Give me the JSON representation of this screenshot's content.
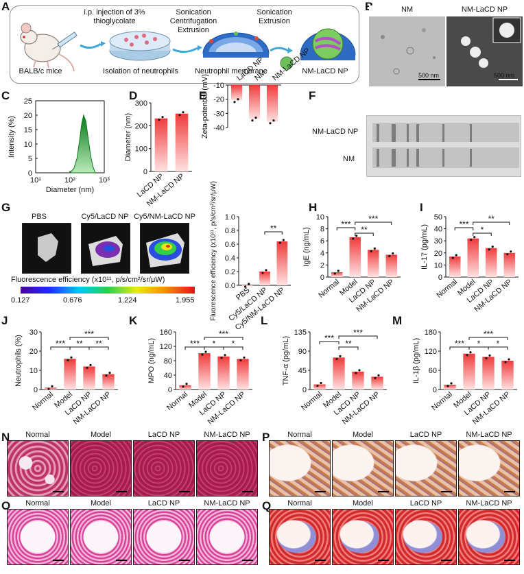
{
  "panels": {
    "A": "A",
    "B": "B",
    "C": "C",
    "D": "D",
    "E": "E",
    "F": "F",
    "G": "G",
    "H": "H",
    "I": "I",
    "J": "J",
    "K": "K",
    "L": "L",
    "M": "M",
    "N": "N",
    "O": "O",
    "P": "P",
    "Q": "Q"
  },
  "schematic": {
    "mice_label": "BALB/c mice",
    "injection_label_1": "i.p. injection of 3%",
    "injection_label_2": "thioglycolate",
    "isolation_label": "Isolation of neutrophils",
    "step2_1": "Sonication",
    "step2_2": "Centrifugation",
    "step2_3": "Extrusion",
    "membrane_label": "Neutrophil membrane",
    "step3_1": "Sonication",
    "step3_2": "Extrusion",
    "np_label": "NM-LaCD NP"
  },
  "tem": {
    "left_title": "NM",
    "right_title": "NM-LaCD NP",
    "left_scale": "500 nm",
    "right_scale": "500 nm"
  },
  "gel": {
    "row1": "NM-LaCD NP",
    "row2": "NM"
  },
  "ivis": {
    "labels": [
      "PBS",
      "Cy5/LaCD NP",
      "Cy5/NM-LaCD NP"
    ],
    "colorbar_title": "Fluorescence efficiency (x10¹¹, p/s/cm²/sr/μW)",
    "ticks": [
      "0.127",
      "0.676",
      "1.224",
      "1.955"
    ]
  },
  "chart_data": [
    {
      "id": "C",
      "type": "area",
      "xlabel": "Diameter (nm)",
      "ylabel": "Intensity (%)",
      "xscale": "log",
      "xlim": [
        10,
        1000
      ],
      "ylim": [
        0,
        25
      ],
      "xticks": [
        "10¹",
        "10²",
        "10³"
      ],
      "yticks": [
        "0",
        "5",
        "10",
        "15",
        "20",
        "25"
      ],
      "x": [
        100,
        130,
        160,
        190,
        220,
        250,
        290,
        340,
        400,
        470,
        550
      ],
      "y": [
        0,
        1.5,
        5,
        11,
        17,
        20,
        18,
        12,
        6,
        2,
        0
      ]
    },
    {
      "id": "D",
      "type": "bar",
      "ylabel": "Diameter (nm)",
      "ylim": [
        0,
        300
      ],
      "yticks": [
        "0",
        "100",
        "200",
        "300"
      ],
      "categories": [
        "LaCD NP",
        "NM-LaCD NP"
      ],
      "values": [
        232,
        253
      ]
    },
    {
      "id": "E",
      "type": "bar",
      "ylabel": "Zeta-potential (mV)",
      "ylim": [
        -40,
        -10
      ],
      "yticks": [
        "-10",
        "-20",
        "-30",
        "-40"
      ],
      "categories": [
        "LaCD NP",
        "NM",
        "NM-LaCD NP"
      ],
      "values": [
        -21,
        -34,
        -36
      ]
    },
    {
      "id": "G",
      "type": "bar",
      "ylabel": "Fluorescence efficiency (x10¹¹, p/s/cm²/sr/μW)",
      "ylim": [
        0,
        1.0
      ],
      "yticks": [
        "0.0",
        "0.2",
        "0.4",
        "0.6",
        "0.8",
        "1.0"
      ],
      "categories": [
        "PBS",
        "Cy5/LaCD NP",
        "Cy5/NM-LaCD NP"
      ],
      "values": [
        0.0,
        0.2,
        0.64
      ],
      "annotations": [
        "**"
      ]
    },
    {
      "id": "H",
      "type": "bar",
      "ylabel": "IgE (ng/mL)",
      "ylim": [
        0,
        10
      ],
      "yticks": [
        "0",
        "2",
        "4",
        "6",
        "8",
        "10"
      ],
      "categories": [
        "Normal",
        "Model",
        "LaCD NP",
        "NM-LaCD NP"
      ],
      "values": [
        0.8,
        6.6,
        4.5,
        3.7
      ],
      "annotations": [
        "***",
        "**",
        "***"
      ]
    },
    {
      "id": "I",
      "type": "bar",
      "ylabel": "IL-17 (pg/mL)",
      "ylim": [
        0,
        50
      ],
      "yticks": [
        "0",
        "10",
        "20",
        "30",
        "40",
        "50"
      ],
      "categories": [
        "Normal",
        "Model",
        "LaCD NP",
        "NM-LaCD NP"
      ],
      "values": [
        17,
        32,
        24,
        20
      ],
      "annotations": [
        "***",
        "*",
        "**"
      ]
    },
    {
      "id": "J",
      "type": "bar",
      "ylabel": "Neutrophils (%)",
      "ylim": [
        0,
        30
      ],
      "yticks": [
        "0",
        "10",
        "20",
        "30"
      ],
      "categories": [
        "Normal",
        "Model",
        "LaCD NP",
        "NM-LaCD NP"
      ],
      "values": [
        1,
        16,
        12,
        8
      ],
      "annotations": [
        "***",
        "**",
        "**",
        "***"
      ]
    },
    {
      "id": "K",
      "type": "bar",
      "ylabel": "MPO (ng/mL)",
      "ylim": [
        0,
        160
      ],
      "yticks": [
        "0",
        "40",
        "80",
        "120",
        "160"
      ],
      "categories": [
        "Normal",
        "Model",
        "LaCD NP",
        "NM-LaCD NP"
      ],
      "values": [
        12,
        101,
        92,
        85
      ],
      "annotations": [
        "***",
        "*",
        "*",
        "***"
      ]
    },
    {
      "id": "L",
      "type": "bar",
      "ylabel": "TNF-α (pg/mL)",
      "ylim": [
        0,
        135
      ],
      "yticks": [
        "0",
        "45",
        "90",
        "135"
      ],
      "categories": [
        "Normal",
        "Model",
        "LaCD NP",
        "NM-LaCD NP"
      ],
      "values": [
        12,
        75,
        42,
        30
      ],
      "annotations": [
        "***",
        "**",
        "***"
      ]
    },
    {
      "id": "M",
      "type": "bar",
      "ylabel": "IL-1β (pg/mL)",
      "ylim": [
        0,
        180
      ],
      "yticks": [
        "0",
        "60",
        "120",
        "180"
      ],
      "categories": [
        "Normal",
        "Model",
        "LaCD NP",
        "NM-LaCD NP"
      ],
      "values": [
        15,
        112,
        102,
        90
      ],
      "annotations": [
        "***",
        "*",
        "*",
        "***"
      ]
    }
  ],
  "histology": {
    "labels": [
      "Normal",
      "Model",
      "LaCD NP",
      "NM-LaCD NP"
    ]
  }
}
